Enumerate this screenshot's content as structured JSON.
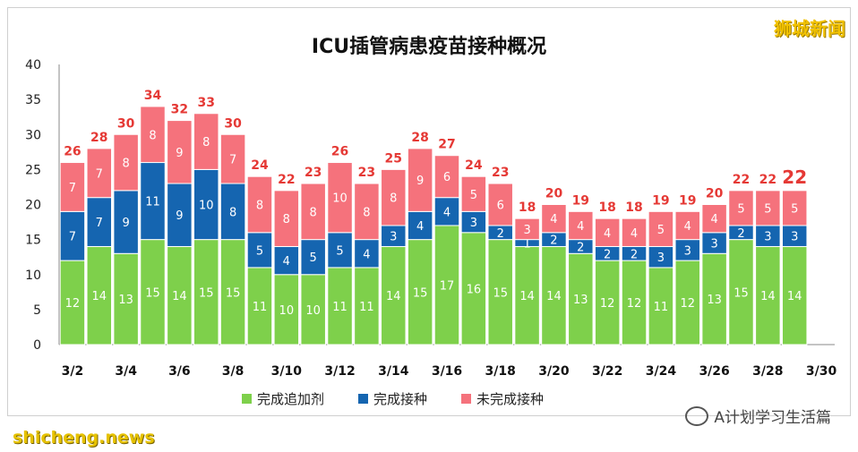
{
  "watermark_top": "狮城新闻",
  "watermark_bottom": "shicheng.news",
  "footer_source": "A计划学习生活篇",
  "colors": {
    "booster": "#7ed04b",
    "vaccinated": "#1565b0",
    "unvaccinated": "#f5727c",
    "total_label": "#e53935"
  },
  "chart_data": {
    "type": "bar",
    "stacked": true,
    "title": "ICU插管病患疫苗接种概况",
    "categories": [
      "3/2",
      "3/3",
      "3/4",
      "3/5",
      "3/6",
      "3/7",
      "3/8",
      "3/9",
      "3/10",
      "3/11",
      "3/12",
      "3/13",
      "3/14",
      "3/15",
      "3/16",
      "3/17",
      "3/18",
      "3/19",
      "3/20",
      "3/21",
      "3/22",
      "3/23",
      "3/24",
      "3/25",
      "3/26",
      "3/27",
      "3/28",
      "3/29"
    ],
    "x_tick_labels": [
      "3/2",
      "3/4",
      "3/6",
      "3/8",
      "3/10",
      "3/12",
      "3/14",
      "3/16",
      "3/18",
      "3/20",
      "3/22",
      "3/24",
      "3/26",
      "3/28",
      "3/30"
    ],
    "series": [
      {
        "name": "完成追加剂",
        "values": [
          12,
          14,
          13,
          15,
          14,
          15,
          15,
          11,
          10,
          10,
          11,
          11,
          14,
          15,
          17,
          16,
          15,
          14,
          14,
          13,
          12,
          12,
          11,
          12,
          13,
          15,
          14,
          14
        ]
      },
      {
        "name": "完成接种",
        "values": [
          7,
          7,
          9,
          11,
          9,
          10,
          8,
          5,
          4,
          5,
          5,
          4,
          3,
          4,
          4,
          3,
          2,
          1,
          2,
          2,
          2,
          2,
          3,
          3,
          3,
          2,
          3,
          3
        ]
      },
      {
        "name": "未完成接种",
        "values": [
          7,
          7,
          8,
          8,
          9,
          8,
          7,
          8,
          8,
          8,
          10,
          8,
          8,
          9,
          6,
          5,
          6,
          3,
          4,
          4,
          4,
          4,
          5,
          4,
          4,
          5,
          5,
          5
        ]
      }
    ],
    "totals": [
      26,
      28,
      30,
      34,
      32,
      33,
      30,
      24,
      22,
      23,
      26,
      23,
      25,
      28,
      27,
      24,
      23,
      18,
      20,
      19,
      18,
      18,
      19,
      19,
      20,
      22,
      22,
      22
    ],
    "ylim": [
      0,
      40
    ],
    "yticks": [
      0,
      5,
      10,
      15,
      20,
      25,
      30,
      35,
      40
    ],
    "legend_position": "bottom",
    "grid": false
  }
}
